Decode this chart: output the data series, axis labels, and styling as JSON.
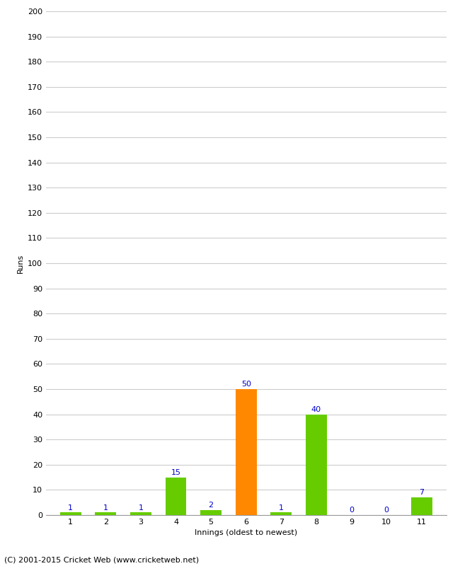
{
  "innings": [
    1,
    2,
    3,
    4,
    5,
    6,
    7,
    8,
    9,
    10,
    11
  ],
  "runs": [
    1,
    1,
    1,
    15,
    2,
    50,
    1,
    40,
    0,
    0,
    7
  ],
  "colors": [
    "#66cc00",
    "#66cc00",
    "#66cc00",
    "#66cc00",
    "#66cc00",
    "#ff8800",
    "#66cc00",
    "#66cc00",
    "#66cc00",
    "#66cc00",
    "#66cc00"
  ],
  "xlabel": "Innings (oldest to newest)",
  "ylabel": "Runs",
  "ylim": [
    0,
    200
  ],
  "yticks": [
    0,
    10,
    20,
    30,
    40,
    50,
    60,
    70,
    80,
    90,
    100,
    110,
    120,
    130,
    140,
    150,
    160,
    170,
    180,
    190,
    200
  ],
  "label_color": "#0000cc",
  "label_fontsize": 8,
  "axis_label_fontsize": 8,
  "tick_fontsize": 8,
  "footer": "(C) 2001-2015 Cricket Web (www.cricketweb.net)",
  "footer_fontsize": 8,
  "background_color": "#ffffff",
  "grid_color": "#cccccc",
  "bar_width": 0.6
}
